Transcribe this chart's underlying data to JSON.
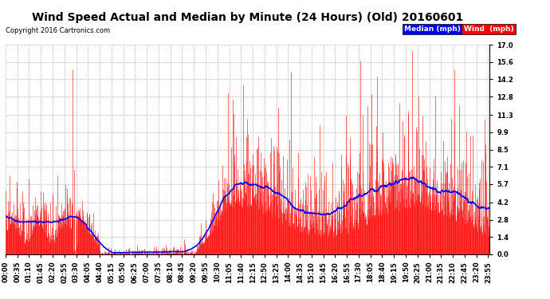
{
  "title": "Wind Speed Actual and Median by Minute (24 Hours) (Old) 20160601",
  "copyright": "Copyright 2016 Cartronics.com",
  "yticks": [
    0.0,
    1.4,
    2.8,
    4.2,
    5.7,
    7.1,
    8.5,
    9.9,
    11.3,
    12.8,
    14.2,
    15.6,
    17.0
  ],
  "ylim": [
    0.0,
    17.0
  ],
  "bg_color": "#ffffff",
  "plot_bg_color": "#ffffff",
  "grid_color": "#bbbbbb",
  "wind_color": "#ff0000",
  "median_color": "#0000ff",
  "legend_median_bg": "#0000ff",
  "legend_wind_bg": "#ff0000",
  "title_fontsize": 10,
  "copyright_fontsize": 6,
  "tick_fontsize": 6,
  "num_minutes": 1440,
  "seed": 42
}
